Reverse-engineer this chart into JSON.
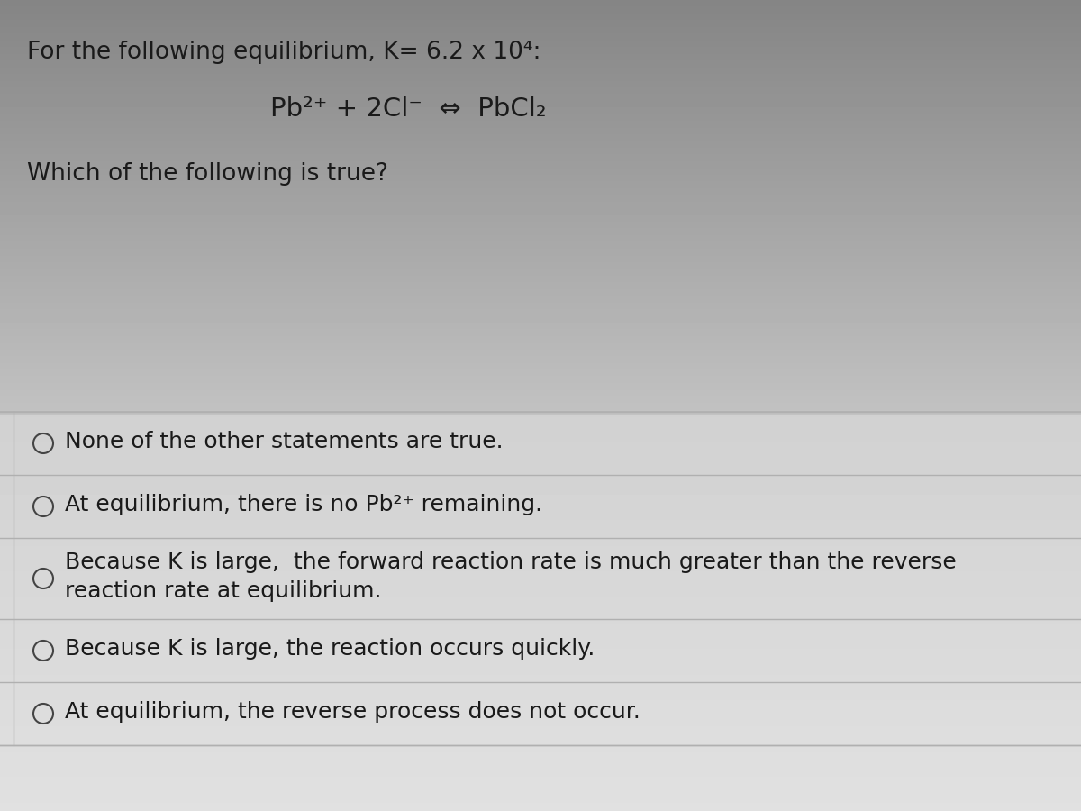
{
  "bg_color_top": "#8a8a8a",
  "bg_color_mid": "#c8c8c8",
  "bg_color_bottom": "#e0e0e0",
  "options_bg": "#d8d8d8",
  "text_color": "#1a1a1a",
  "title_line": "For the following equilibrium, K= 6.2 x 10⁴:",
  "equation": "Pb²⁺ + 2Cl⁻  ⇔  PbCl₂",
  "question": "Which of the following is true?",
  "options": [
    "None of the other statements are true.",
    "At equilibrium, there is no Pb²⁺ remaining.",
    "Because K is large,  the forward reaction rate is much greater than the reverse\nreaction rate at equilibrium.",
    "Because K is large, the reaction occurs quickly.",
    "At equilibrium, the reverse process does not occur."
  ],
  "separator_color": "#b0b0b0",
  "circle_color": "#444444",
  "font_size_title": 19,
  "font_size_eq": 21,
  "font_size_question": 19,
  "font_size_option": 18
}
